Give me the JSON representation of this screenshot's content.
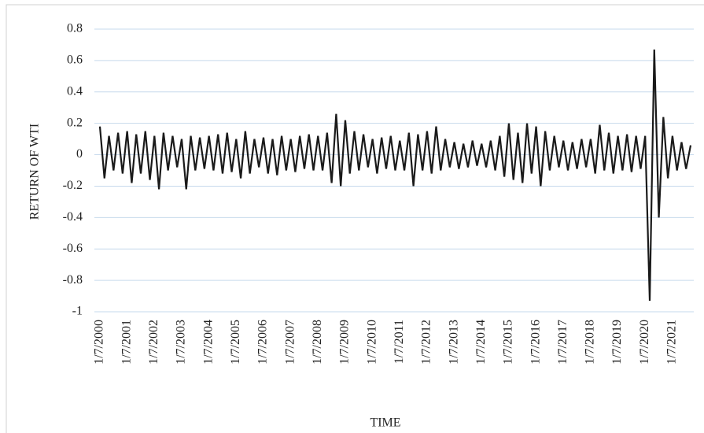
{
  "chart_data": {
    "type": "line",
    "x_label": "TIME",
    "y_label": "RETURN OF WTI",
    "categories": [
      "1/7/2000",
      null,
      null,
      null,
      null,
      null,
      "1/7/2001",
      null,
      null,
      null,
      null,
      null,
      "1/7/2002",
      null,
      null,
      null,
      null,
      null,
      "1/7/2003",
      null,
      null,
      null,
      null,
      null,
      "1/7/2004",
      null,
      null,
      null,
      null,
      null,
      "1/7/2005",
      null,
      null,
      null,
      null,
      null,
      "1/7/2006",
      null,
      null,
      null,
      null,
      null,
      "1/7/2007",
      null,
      null,
      null,
      null,
      null,
      "1/7/2008",
      null,
      null,
      null,
      null,
      null,
      "1/7/2009",
      null,
      null,
      null,
      null,
      null,
      "1/7/2010",
      null,
      null,
      null,
      null,
      null,
      "1/7/2011",
      null,
      null,
      null,
      null,
      null,
      "1/7/2012",
      null,
      null,
      null,
      null,
      null,
      "1/7/2013",
      null,
      null,
      null,
      null,
      null,
      "1/7/2014",
      null,
      null,
      null,
      null,
      null,
      "1/7/2015",
      null,
      null,
      null,
      null,
      null,
      "1/7/2016",
      null,
      null,
      null,
      null,
      null,
      "1/7/2017",
      null,
      null,
      null,
      null,
      null,
      "1/7/2018",
      null,
      null,
      null,
      null,
      null,
      "1/7/2019",
      null,
      null,
      null,
      null,
      null,
      "1/7/2020",
      null,
      null,
      null,
      null,
      null,
      "1/7/2021",
      null,
      null,
      null,
      null
    ],
    "values": [
      0.18,
      -0.15,
      0.12,
      -0.1,
      0.14,
      -0.12,
      0.15,
      -0.18,
      0.13,
      -0.12,
      0.15,
      -0.16,
      0.12,
      -0.22,
      0.14,
      -0.1,
      0.12,
      -0.08,
      0.1,
      -0.22,
      0.12,
      -0.1,
      0.11,
      -0.09,
      0.12,
      -0.1,
      0.13,
      -0.12,
      0.14,
      -0.11,
      0.1,
      -0.15,
      0.15,
      -0.12,
      0.1,
      -0.08,
      0.11,
      -0.12,
      0.1,
      -0.13,
      0.12,
      -0.1,
      0.1,
      -0.11,
      0.12,
      -0.09,
      0.13,
      -0.1,
      0.12,
      -0.1,
      0.14,
      -0.18,
      0.26,
      -0.2,
      0.22,
      -0.12,
      0.15,
      -0.1,
      0.13,
      -0.08,
      0.1,
      -0.12,
      0.11,
      -0.09,
      0.12,
      -0.1,
      0.09,
      -0.1,
      0.14,
      -0.2,
      0.13,
      -0.1,
      0.15,
      -0.12,
      0.18,
      -0.1,
      0.1,
      -0.08,
      0.08,
      -0.09,
      0.07,
      -0.08,
      0.09,
      -0.07,
      0.07,
      -0.08,
      0.09,
      -0.1,
      0.12,
      -0.14,
      0.2,
      -0.16,
      0.14,
      -0.18,
      0.2,
      -0.12,
      0.18,
      -0.2,
      0.15,
      -0.1,
      0.12,
      -0.08,
      0.09,
      -0.1,
      0.08,
      -0.09,
      0.1,
      -0.08,
      0.1,
      -0.12,
      0.19,
      -0.1,
      0.14,
      -0.12,
      0.12,
      -0.1,
      0.13,
      -0.11,
      0.12,
      -0.09,
      0.12,
      -0.93,
      0.67,
      -0.4,
      0.24,
      -0.15,
      0.12,
      -0.1,
      0.08,
      -0.09,
      0.06
    ],
    "color": "#1a1a1a",
    "ylim": [
      -1,
      0.8
    ],
    "yticks": [
      -1,
      -0.8,
      -0.6,
      -0.4,
      -0.2,
      0,
      0.2,
      0.4,
      0.6,
      0.8
    ],
    "grid": true
  }
}
